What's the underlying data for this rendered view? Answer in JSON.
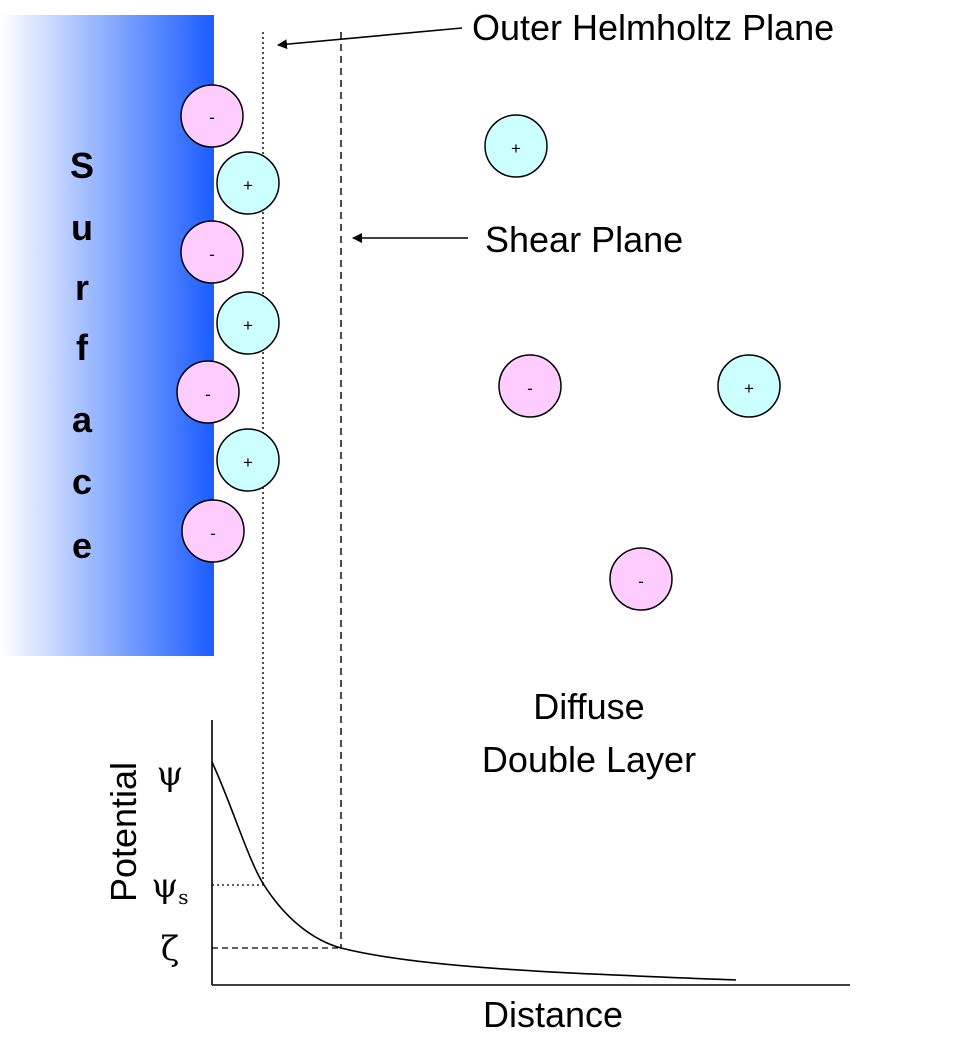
{
  "surface": {
    "letters": [
      "S",
      "u",
      "r",
      "f",
      "a",
      "c",
      "e"
    ],
    "gradient": {
      "start": "#ffffff",
      "end": "#1a5cff"
    }
  },
  "ion_colors": {
    "negative": "#ffccff",
    "positive": "#ccffff"
  },
  "ions": {
    "adsorbed": [
      {
        "sign": "-"
      },
      {
        "sign": "+"
      },
      {
        "sign": "-"
      },
      {
        "sign": "+"
      },
      {
        "sign": "-"
      },
      {
        "sign": "+"
      },
      {
        "sign": "-"
      }
    ],
    "diffuse": [
      {
        "sign": "+"
      },
      {
        "sign": "-"
      },
      {
        "sign": "+"
      },
      {
        "sign": "-"
      }
    ]
  },
  "labels": {
    "outer_helmholtz_plane": "Outer Helmholtz Plane",
    "shear_plane": "Shear Plane",
    "diffuse_line1": "Diffuse",
    "diffuse_line2": "Double Layer"
  },
  "plot": {
    "ylabel": "Potential",
    "xlabel": "Distance",
    "psi": "ψ",
    "psi_s_main": "ψ",
    "psi_s_sub": "s",
    "zeta": "ζ"
  }
}
